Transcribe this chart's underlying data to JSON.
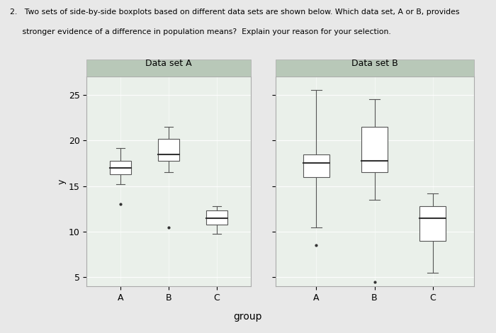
{
  "xlabel": "group",
  "ylabel": "y",
  "ylim": [
    4,
    27
  ],
  "yticks": [
    5,
    10,
    15,
    20,
    25
  ],
  "panel_titles": [
    "Data set A",
    "Data set B"
  ],
  "panel_bg": "#eaf0ea",
  "panel_title_bg": "#b8c8b8",
  "fig_bg": "#e8e8e8",
  "line1": "2.   Two sets of side-by-side boxplots based on different data sets are shown below. Which data set, A or B, provides",
  "line2": "     stronger evidence of a difference in population means?  Explain your reason for your selection.",
  "datasets": {
    "A": {
      "groups": [
        "A",
        "B",
        "C"
      ],
      "boxes": [
        {
          "q1": 16.3,
          "median": 17.0,
          "q3": 17.8,
          "whisker_low": 15.2,
          "whisker_high": 19.2,
          "outliers": [
            13.0
          ]
        },
        {
          "q1": 17.8,
          "median": 18.5,
          "q3": 20.2,
          "whisker_low": 16.5,
          "whisker_high": 21.5,
          "outliers": [
            10.5
          ]
        },
        {
          "q1": 10.8,
          "median": 11.5,
          "q3": 12.3,
          "whisker_low": 9.8,
          "whisker_high": 12.8,
          "outliers": []
        }
      ]
    },
    "B": {
      "groups": [
        "A",
        "B",
        "C"
      ],
      "boxes": [
        {
          "q1": 16.0,
          "median": 17.5,
          "q3": 18.5,
          "whisker_low": 10.5,
          "whisker_high": 25.5,
          "outliers": [
            8.5
          ]
        },
        {
          "q1": 16.5,
          "median": 17.8,
          "q3": 21.5,
          "whisker_low": 13.5,
          "whisker_high": 24.5,
          "outliers": [
            4.5
          ]
        },
        {
          "q1": 9.0,
          "median": 11.5,
          "q3": 12.8,
          "whisker_low": 5.5,
          "whisker_high": 14.2,
          "outliers": []
        }
      ]
    }
  }
}
